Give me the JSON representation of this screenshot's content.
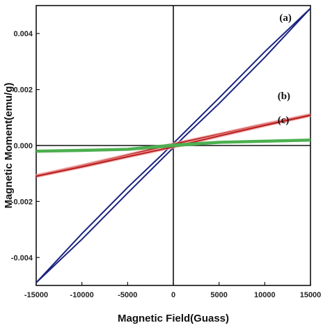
{
  "chart_data": {
    "type": "line",
    "xlabel": "Magnetic Field(Guass)",
    "ylabel": "Magnetic Moment(emu/g)",
    "xlim": [
      -15000,
      15000
    ],
    "ylim": [
      -0.005,
      0.005
    ],
    "x_ticks": [
      -15000,
      -10000,
      -5000,
      0,
      5000,
      10000,
      15000
    ],
    "y_ticks": [
      -0.004,
      -0.002,
      0.0,
      0.002,
      0.004
    ],
    "x_tick_labels": [
      "-15000",
      "-10000",
      "-5000",
      "0",
      "5000",
      "10000",
      "15000"
    ],
    "y_tick_labels": [
      "-0.004",
      "-0.002",
      "0.000",
      "0.002",
      "0.004"
    ],
    "grid": false,
    "series": [
      {
        "label": "(a)",
        "color": "#1a237e",
        "loop": true,
        "upper": {
          "x": [
            -15000,
            -10000,
            -5000,
            -1000,
            0,
            1000,
            5000,
            10000,
            15000
          ],
          "y": [
            -0.0049,
            -0.00315,
            -0.0015,
            -0.00025,
            8e-05,
            0.0004,
            0.0017,
            0.00335,
            0.0049
          ]
        },
        "lower": {
          "x": [
            -15000,
            -10000,
            -5000,
            -1000,
            0,
            1000,
            5000,
            10000,
            15000
          ],
          "y": [
            -0.0049,
            -0.00335,
            -0.0017,
            -0.0004,
            -8e-05,
            0.00025,
            0.0015,
            0.00315,
            0.0049
          ]
        }
      },
      {
        "label": "(b)",
        "color": "#b71c1c",
        "loop": true,
        "upper": {
          "x": [
            -15000,
            -10000,
            -5000,
            -1000,
            0,
            1000,
            5000,
            10000,
            15000
          ],
          "y": [
            -0.00108,
            -0.00072,
            -0.00034,
            -3e-05,
            5e-05,
            0.00012,
            0.0004,
            0.00076,
            0.0011
          ]
        },
        "lower": {
          "x": [
            -15000,
            -10000,
            -5000,
            -1000,
            0,
            1000,
            5000,
            10000,
            15000
          ],
          "y": [
            -0.0011,
            -0.00076,
            -0.0004,
            -0.00012,
            -5e-05,
            3e-05,
            0.00034,
            0.00072,
            0.00108
          ]
        }
      },
      {
        "label": "(c)",
        "color": "#4caf50",
        "loop": false,
        "upper": {
          "x": [
            -15000,
            -10000,
            -5000,
            0,
            5000,
            10000,
            15000
          ],
          "y": [
            -0.0002,
            -0.00017,
            -0.00013,
            2e-05,
            0.00012,
            0.00016,
            0.0002
          ]
        },
        "lower": {
          "x": [
            -15000,
            -10000,
            -5000,
            0,
            5000,
            10000,
            15000
          ],
          "y": [
            -0.00021,
            -0.00018,
            -0.00014,
            -1e-05,
            0.00011,
            0.00015,
            0.00019
          ]
        }
      }
    ],
    "annotations": [
      {
        "text": "(a)",
        "x": 11600,
        "y": 0.00445
      },
      {
        "text": "(b)",
        "x": 11400,
        "y": 0.00165
      },
      {
        "text": "(c)",
        "x": 11400,
        "y": 0.0008
      }
    ]
  }
}
